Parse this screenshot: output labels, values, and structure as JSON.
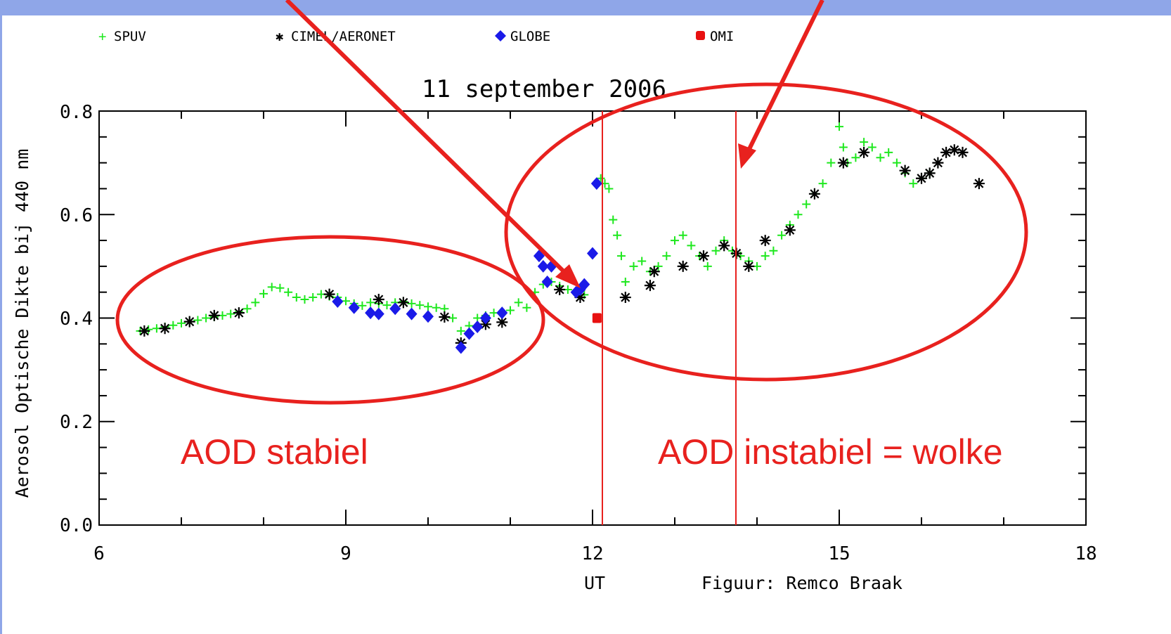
{
  "colors": {
    "frame_blue": "#8fa6e8",
    "annotation_red": "#e8211e",
    "spuv_green": "#1ee81e",
    "cimel_black": "#000000",
    "globe_blue": "#1a1ae8",
    "omi_red": "#e81010"
  },
  "chart_data": {
    "type": "scatter",
    "title": "11 september 2006",
    "xlabel": "UT",
    "ylabel": "Aerosol Optische Dikte bij 440 nm",
    "xlim": [
      6,
      18
    ],
    "ylim": [
      0.0,
      0.8
    ],
    "x_ticks": [
      "6",
      "9",
      "12",
      "15",
      "18"
    ],
    "y_ticks": [
      "0.0",
      "0.2",
      "0.4",
      "0.6",
      "0.8"
    ],
    "grid": false,
    "legend_position": "top",
    "credit": "Figuur: Remco Braak",
    "series": [
      {
        "name": "SPUV",
        "marker": "plus",
        "color": "#1ee81e",
        "points": [
          [
            6.5,
            0.375
          ],
          [
            6.6,
            0.378
          ],
          [
            6.7,
            0.38
          ],
          [
            6.8,
            0.383
          ],
          [
            6.9,
            0.386
          ],
          [
            7.0,
            0.39
          ],
          [
            7.1,
            0.393
          ],
          [
            7.2,
            0.396
          ],
          [
            7.3,
            0.4
          ],
          [
            7.4,
            0.402
          ],
          [
            7.5,
            0.405
          ],
          [
            7.6,
            0.408
          ],
          [
            7.7,
            0.412
          ],
          [
            7.8,
            0.418
          ],
          [
            7.9,
            0.43
          ],
          [
            8.0,
            0.447
          ],
          [
            8.1,
            0.46
          ],
          [
            8.2,
            0.458
          ],
          [
            8.3,
            0.45
          ],
          [
            8.4,
            0.44
          ],
          [
            8.5,
            0.436
          ],
          [
            8.6,
            0.44
          ],
          [
            8.7,
            0.446
          ],
          [
            8.8,
            0.442
          ],
          [
            8.9,
            0.44
          ],
          [
            9.0,
            0.433
          ],
          [
            9.1,
            0.428
          ],
          [
            9.2,
            0.424
          ],
          [
            9.3,
            0.43
          ],
          [
            9.4,
            0.428
          ],
          [
            9.5,
            0.425
          ],
          [
            9.6,
            0.43
          ],
          [
            9.7,
            0.432
          ],
          [
            9.8,
            0.428
          ],
          [
            9.9,
            0.425
          ],
          [
            10.0,
            0.422
          ],
          [
            10.1,
            0.42
          ],
          [
            10.2,
            0.418
          ],
          [
            10.3,
            0.4
          ],
          [
            10.4,
            0.375
          ],
          [
            10.5,
            0.385
          ],
          [
            10.6,
            0.4
          ],
          [
            10.7,
            0.405
          ],
          [
            10.8,
            0.41
          ],
          [
            10.9,
            0.408
          ],
          [
            11.0,
            0.415
          ],
          [
            11.1,
            0.43
          ],
          [
            11.2,
            0.42
          ],
          [
            11.3,
            0.45
          ],
          [
            11.4,
            0.465
          ],
          [
            11.5,
            0.47
          ],
          [
            11.6,
            0.462
          ],
          [
            11.7,
            0.455
          ],
          [
            11.8,
            0.45
          ],
          [
            11.9,
            0.445
          ],
          [
            12.1,
            0.67
          ],
          [
            12.15,
            0.66
          ],
          [
            12.2,
            0.65
          ],
          [
            12.25,
            0.59
          ],
          [
            12.3,
            0.56
          ],
          [
            12.35,
            0.52
          ],
          [
            12.4,
            0.47
          ],
          [
            12.5,
            0.5
          ],
          [
            12.6,
            0.51
          ],
          [
            12.7,
            0.49
          ],
          [
            12.8,
            0.5
          ],
          [
            12.9,
            0.52
          ],
          [
            13.0,
            0.55
          ],
          [
            13.1,
            0.56
          ],
          [
            13.2,
            0.54
          ],
          [
            13.3,
            0.52
          ],
          [
            13.4,
            0.5
          ],
          [
            13.5,
            0.53
          ],
          [
            13.6,
            0.55
          ],
          [
            13.7,
            0.53
          ],
          [
            13.8,
            0.52
          ],
          [
            13.9,
            0.51
          ],
          [
            14.0,
            0.5
          ],
          [
            14.1,
            0.52
          ],
          [
            14.2,
            0.53
          ],
          [
            14.3,
            0.56
          ],
          [
            14.4,
            0.58
          ],
          [
            14.5,
            0.6
          ],
          [
            14.6,
            0.62
          ],
          [
            14.7,
            0.64
          ],
          [
            14.8,
            0.66
          ],
          [
            14.9,
            0.7
          ],
          [
            15.0,
            0.77
          ],
          [
            15.05,
            0.73
          ],
          [
            15.1,
            0.7
          ],
          [
            15.2,
            0.71
          ],
          [
            15.3,
            0.74
          ],
          [
            15.4,
            0.73
          ],
          [
            15.5,
            0.71
          ],
          [
            15.6,
            0.72
          ],
          [
            15.7,
            0.7
          ],
          [
            15.8,
            0.68
          ],
          [
            15.9,
            0.66
          ],
          [
            16.0,
            0.67
          ],
          [
            16.1,
            0.68
          ]
        ]
      },
      {
        "name": "CIMEL/AERONET",
        "marker": "asterisk",
        "color": "#000000",
        "points": [
          [
            6.55,
            0.375
          ],
          [
            6.8,
            0.38
          ],
          [
            7.1,
            0.393
          ],
          [
            7.4,
            0.405
          ],
          [
            7.7,
            0.41
          ],
          [
            8.8,
            0.446
          ],
          [
            9.4,
            0.436
          ],
          [
            9.7,
            0.43
          ],
          [
            10.2,
            0.402
          ],
          [
            10.4,
            0.352
          ],
          [
            10.7,
            0.388
          ],
          [
            10.9,
            0.392
          ],
          [
            11.6,
            0.455
          ],
          [
            11.85,
            0.44
          ],
          [
            12.4,
            0.44
          ],
          [
            12.7,
            0.463
          ],
          [
            12.75,
            0.49
          ],
          [
            13.1,
            0.5
          ],
          [
            13.35,
            0.52
          ],
          [
            13.6,
            0.54
          ],
          [
            13.75,
            0.525
          ],
          [
            13.9,
            0.5
          ],
          [
            14.1,
            0.55
          ],
          [
            14.4,
            0.57
          ],
          [
            14.7,
            0.64
          ],
          [
            15.05,
            0.7
          ],
          [
            15.3,
            0.72
          ],
          [
            15.8,
            0.685
          ],
          [
            16.0,
            0.67
          ],
          [
            16.1,
            0.68
          ],
          [
            16.2,
            0.7
          ],
          [
            16.3,
            0.72
          ],
          [
            16.4,
            0.725
          ],
          [
            16.5,
            0.72
          ],
          [
            16.7,
            0.66
          ]
        ]
      },
      {
        "name": "GLOBE",
        "marker": "diamond",
        "color": "#1a1ae8",
        "points": [
          [
            8.9,
            0.432
          ],
          [
            9.1,
            0.42
          ],
          [
            9.3,
            0.41
          ],
          [
            9.4,
            0.408
          ],
          [
            9.6,
            0.418
          ],
          [
            9.8,
            0.408
          ],
          [
            10.0,
            0.403
          ],
          [
            10.4,
            0.343
          ],
          [
            10.5,
            0.37
          ],
          [
            10.6,
            0.383
          ],
          [
            10.7,
            0.4
          ],
          [
            10.9,
            0.41
          ],
          [
            11.35,
            0.52
          ],
          [
            11.4,
            0.5
          ],
          [
            11.5,
            0.5
          ],
          [
            11.45,
            0.47
          ],
          [
            11.8,
            0.45
          ],
          [
            11.9,
            0.465
          ],
          [
            12.0,
            0.525
          ],
          [
            12.05,
            0.66
          ],
          [
            11.85,
            0.455
          ]
        ]
      },
      {
        "name": "OMI",
        "marker": "square",
        "color": "#e81010",
        "points": [
          [
            12.05,
            0.4
          ]
        ]
      }
    ]
  },
  "annotations": {
    "stable_label": "AOD stabiel",
    "unstable_label": "AOD instabiel = wolke"
  }
}
